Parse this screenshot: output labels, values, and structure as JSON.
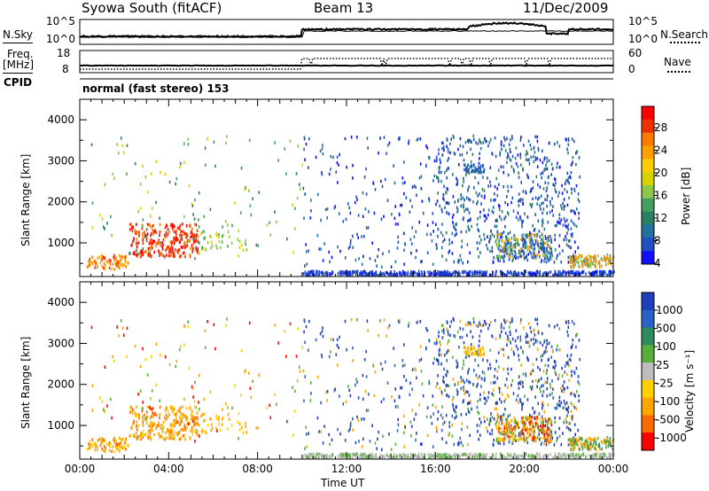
{
  "header": {
    "station": "Syowa South (fitACF)",
    "beam": "Beam 13",
    "date": "11/Dec/2009"
  },
  "nsky_panel": {
    "left_label": "N.Sky",
    "left_ticks": [
      "10^5",
      "10^0"
    ],
    "right_label": "N.Search",
    "right_ticks": [
      "10^5",
      "10^0"
    ]
  },
  "freq_panel": {
    "left_label_top": "Freq.",
    "left_label_unit": "[MHz]",
    "left_ticks": [
      "18",
      "8"
    ],
    "right_label": "Nave",
    "right_ticks": [
      "60",
      "0"
    ],
    "cpid_label": "CPID",
    "mode_text": "normal (fast stereo) 153"
  },
  "chart_data": [
    {
      "type": "heatmap",
      "name": "power",
      "ylabel": "Slant Range [km]",
      "y_ticks": [
        "4000",
        "3000",
        "2000",
        "1000"
      ],
      "y_tick_values": [
        4000,
        3000,
        2000,
        1000
      ],
      "ylim": [
        180,
        4500
      ],
      "xlim": [
        0,
        24
      ],
      "colorbar": {
        "label": "Power [dB]",
        "ticks": [
          "28",
          "24",
          "20",
          "16",
          "12",
          "8",
          "4"
        ],
        "colors": [
          "#ff0000",
          "#ee3300",
          "#ff7a00",
          "#ffa000",
          "#ffcc00",
          "#d9d000",
          "#8cc84b",
          "#44a060",
          "#2a8060",
          "#2070a0",
          "#1f4fc0",
          "#1010ff"
        ]
      }
    },
    {
      "type": "heatmap",
      "name": "velocity",
      "ylabel": "Slant Range [km]",
      "y_ticks": [
        "4000",
        "3000",
        "2000",
        "1000"
      ],
      "y_tick_values": [
        4000,
        3000,
        2000,
        1000
      ],
      "ylim": [
        180,
        4500
      ],
      "xlim": [
        0,
        24
      ],
      "xlabel": "Time UT",
      "x_ticks": [
        "00:00",
        "04:00",
        "08:00",
        "12:00",
        "16:00",
        "20:00",
        "00:00"
      ],
      "colorbar": {
        "label": "Velocity [m s⁻¹]",
        "ticks": [
          "1000",
          "500",
          "100",
          "25",
          "-25",
          "-100",
          "-500",
          "-1000"
        ],
        "colors": [
          "#1f3fbf",
          "#2b62c7",
          "#2f8a5f",
          "#58b03c",
          "#bdbdbd",
          "#ffd000",
          "#ffa500",
          "#ff6a00",
          "#ff0000"
        ]
      }
    }
  ]
}
